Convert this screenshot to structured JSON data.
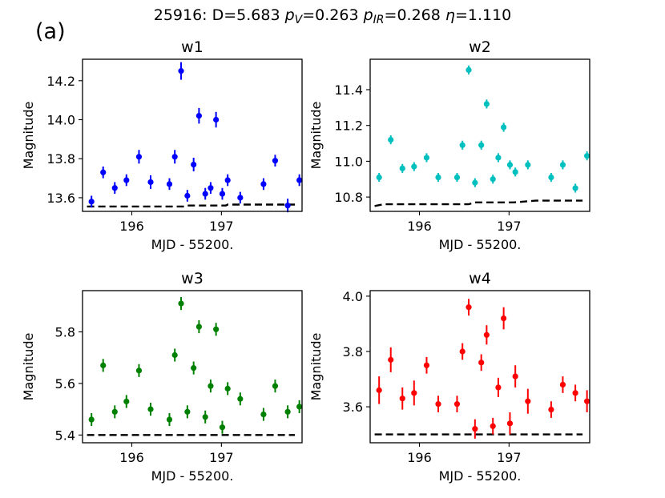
{
  "figure": {
    "panel_letter": "(a)",
    "title_prefix": "25916: D=5.683 ",
    "pv_label": "p",
    "pv_sub": "V",
    "pv_value": "=0.263 ",
    "pir_label": "p",
    "pir_sub": "IR",
    "pir_value": "=0.268 ",
    "eta_label": "η",
    "eta_value": "=1.110"
  },
  "chart_data": [
    {
      "type": "scatter",
      "title": "w1",
      "xlabel": "MJD - 55200.",
      "ylabel": "Magnitude",
      "color": "#0000ff",
      "xlim": [
        195.45,
        197.9
      ],
      "ylim": [
        13.53,
        14.31
      ],
      "xticks": [
        196,
        197
      ],
      "xtick_labels": [
        "196",
        "197"
      ],
      "yticks": [
        13.6,
        13.8,
        14.0,
        14.2
      ],
      "ytick_labels": [
        "13.6",
        "13.8",
        "14.0",
        "14.2"
      ],
      "x": [
        195.55,
        195.68,
        195.81,
        195.94,
        196.08,
        196.21,
        196.42,
        196.48,
        196.55,
        196.62,
        196.69,
        196.75,
        196.82,
        196.88,
        196.94,
        197.01,
        197.07,
        197.21,
        197.47,
        197.6,
        197.74,
        197.87
      ],
      "y": [
        13.58,
        13.73,
        13.65,
        13.69,
        13.81,
        13.68,
        13.67,
        13.81,
        14.25,
        13.61,
        13.77,
        14.02,
        13.62,
        13.65,
        14.0,
        13.62,
        13.69,
        13.6,
        13.67,
        13.79,
        13.56,
        13.69
      ],
      "yerr": [
        0.03,
        0.03,
        0.03,
        0.03,
        0.035,
        0.035,
        0.03,
        0.035,
        0.045,
        0.03,
        0.035,
        0.04,
        0.03,
        0.03,
        0.04,
        0.03,
        0.03,
        0.03,
        0.03,
        0.03,
        0.035,
        0.03
      ],
      "model_x": [
        195.5,
        196.6,
        196.62,
        197.05,
        197.07,
        197.82
      ],
      "model_y": [
        13.555,
        13.555,
        13.56,
        13.56,
        13.565,
        13.565
      ]
    },
    {
      "type": "scatter",
      "title": "w2",
      "xlabel": "MJD - 55200.",
      "ylabel": "Magnitude",
      "color": "#00bfbf",
      "xlim": [
        195.45,
        197.9
      ],
      "ylim": [
        10.72,
        11.57
      ],
      "xticks": [
        196,
        197
      ],
      "xtick_labels": [
        "196",
        "197"
      ],
      "yticks": [
        10.8,
        11.0,
        11.2,
        11.4
      ],
      "ytick_labels": [
        "10.8",
        "11.0",
        "11.2",
        "11.4"
      ],
      "x": [
        195.55,
        195.68,
        195.81,
        195.94,
        196.08,
        196.21,
        196.42,
        196.48,
        196.55,
        196.62,
        196.69,
        196.75,
        196.82,
        196.88,
        196.94,
        197.01,
        197.07,
        197.21,
        197.47,
        197.6,
        197.74,
        197.87
      ],
      "y": [
        10.91,
        11.12,
        10.96,
        10.97,
        11.02,
        10.91,
        10.91,
        11.09,
        11.51,
        10.88,
        11.09,
        11.32,
        10.9,
        11.02,
        11.19,
        10.98,
        10.94,
        10.98,
        10.91,
        10.98,
        10.85,
        11.03
      ],
      "yerr": [
        0.025,
        0.025,
        0.025,
        0.025,
        0.025,
        0.025,
        0.025,
        0.025,
        0.025,
        0.025,
        0.025,
        0.025,
        0.025,
        0.025,
        0.025,
        0.025,
        0.025,
        0.025,
        0.025,
        0.025,
        0.025,
        0.025
      ],
      "model_x": [
        195.5,
        195.6,
        196.55,
        196.62,
        197.05,
        197.3,
        197.82
      ],
      "model_y": [
        10.75,
        10.76,
        10.76,
        10.77,
        10.77,
        10.78,
        10.78
      ]
    },
    {
      "type": "scatter",
      "title": "w3",
      "xlabel": "MJD - 55200.",
      "ylabel": "Magnitude",
      "color": "#008000",
      "xlim": [
        195.45,
        197.9
      ],
      "ylim": [
        5.37,
        5.96
      ],
      "xticks": [
        196,
        197
      ],
      "xtick_labels": [
        "196",
        "197"
      ],
      "yticks": [
        5.4,
        5.6,
        5.8
      ],
      "ytick_labels": [
        "5.4",
        "5.6",
        "5.8"
      ],
      "x": [
        195.55,
        195.68,
        195.81,
        195.94,
        196.08,
        196.21,
        196.42,
        196.48,
        196.55,
        196.62,
        196.69,
        196.75,
        196.82,
        196.88,
        196.94,
        197.01,
        197.07,
        197.21,
        197.47,
        197.6,
        197.74,
        197.87
      ],
      "y": [
        5.46,
        5.67,
        5.49,
        5.53,
        5.65,
        5.5,
        5.46,
        5.71,
        5.91,
        5.49,
        5.66,
        5.82,
        5.47,
        5.59,
        5.81,
        5.43,
        5.58,
        5.54,
        5.48,
        5.59,
        5.49,
        5.51
      ],
      "yerr": [
        0.025,
        0.025,
        0.025,
        0.025,
        0.025,
        0.025,
        0.025,
        0.025,
        0.025,
        0.025,
        0.025,
        0.025,
        0.025,
        0.025,
        0.025,
        0.025,
        0.025,
        0.025,
        0.025,
        0.025,
        0.025,
        0.025
      ],
      "model_x": [
        195.5,
        197.82
      ],
      "model_y": [
        5.4,
        5.4
      ]
    },
    {
      "type": "scatter",
      "title": "w4",
      "xlabel": "MJD - 55200.",
      "ylabel": "Magnitude",
      "color": "#ff0000",
      "xlim": [
        195.45,
        197.9
      ],
      "ylim": [
        3.47,
        4.02
      ],
      "xticks": [
        196,
        197
      ],
      "xtick_labels": [
        "196",
        "197"
      ],
      "yticks": [
        3.6,
        3.8,
        4.0
      ],
      "ytick_labels": [
        "3.6",
        "3.8",
        "4.0"
      ],
      "x": [
        195.55,
        195.68,
        195.81,
        195.94,
        196.08,
        196.21,
        196.42,
        196.48,
        196.55,
        196.62,
        196.69,
        196.75,
        196.82,
        196.88,
        196.94,
        197.01,
        197.07,
        197.21,
        197.47,
        197.6,
        197.74,
        197.87
      ],
      "y": [
        3.66,
        3.77,
        3.63,
        3.65,
        3.75,
        3.61,
        3.61,
        3.8,
        3.96,
        3.52,
        3.76,
        3.86,
        3.53,
        3.67,
        3.92,
        3.54,
        3.71,
        3.62,
        3.59,
        3.68,
        3.65,
        3.62
      ],
      "yerr": [
        0.05,
        0.045,
        0.04,
        0.045,
        0.03,
        0.03,
        0.03,
        0.03,
        0.03,
        0.035,
        0.03,
        0.035,
        0.03,
        0.035,
        0.04,
        0.04,
        0.04,
        0.045,
        0.03,
        0.03,
        0.03,
        0.04
      ],
      "model_x": [
        195.5,
        197.82
      ],
      "model_y": [
        3.5,
        3.5
      ]
    }
  ]
}
